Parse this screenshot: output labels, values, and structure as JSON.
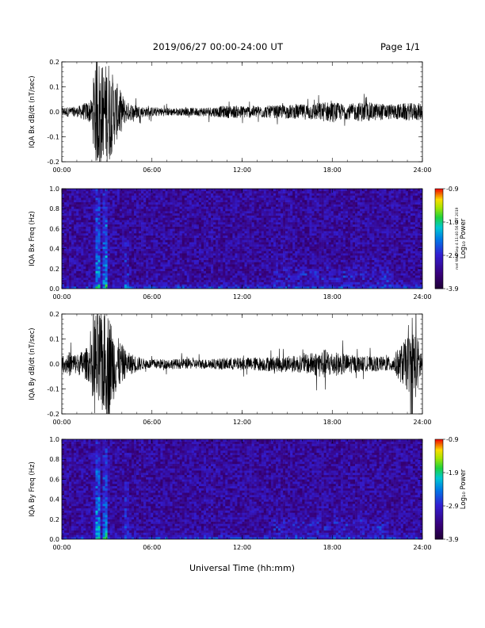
{
  "header": {
    "title": "2019/06/27  00:00-24:00 UT",
    "page": "Page 1/1"
  },
  "footer": {
    "xlabel": "Universal Time (hh:mm)"
  },
  "side_note": "mel Wed Sep 4 11:40:56 CST 2019",
  "chart_data": [
    {
      "type": "line",
      "ylabel": "IQA Bx dB/dt (nT/sec)",
      "x_ticks": [
        "00:00",
        "06:00",
        "12:00",
        "18:00",
        "24:00"
      ],
      "xlim_hours": [
        0,
        24
      ],
      "ylim": [
        -0.2,
        0.2
      ],
      "y_ticks": [
        "0.2",
        "0.1",
        "0.0",
        "-0.1",
        "-0.2"
      ],
      "y_tick_values": [
        0.2,
        0.1,
        0.0,
        -0.1,
        -0.2
      ],
      "envelope": {
        "x": [
          0,
          1,
          2,
          2.2,
          2.5,
          2.8,
          3.1,
          3.4,
          3.8,
          4.3,
          5.5,
          8,
          10,
          11,
          12,
          14,
          16,
          17.5,
          18,
          19,
          20,
          22,
          23,
          24
        ],
        "amp": [
          0.02,
          0.02,
          0.05,
          0.22,
          0.22,
          0.18,
          0.22,
          0.15,
          0.1,
          0.04,
          0.02,
          0.015,
          0.02,
          0.025,
          0.025,
          0.025,
          0.03,
          0.04,
          0.04,
          0.03,
          0.04,
          0.03,
          0.035,
          0.035
        ]
      }
    },
    {
      "type": "heatmap",
      "ylabel": "IQA Bx Freq (Hz)",
      "x_ticks": [
        "00:00",
        "06:00",
        "12:00",
        "18:00",
        "24:00"
      ],
      "xlim_hours": [
        0,
        24
      ],
      "ylim": [
        0.0,
        1.0
      ],
      "y_ticks": [
        "1.0",
        "0.8",
        "0.6",
        "0.4",
        "0.2",
        "0.0"
      ],
      "y_tick_values": [
        1.0,
        0.8,
        0.6,
        0.4,
        0.2,
        0.0
      ],
      "colorbar": {
        "label": "Log₁₀ Power",
        "ticks": [
          "-0.9",
          "-1.9",
          "-2.9",
          "-3.9"
        ],
        "range": [
          -3.9,
          -0.9
        ]
      },
      "features": [
        {
          "t": 2.4,
          "width": 0.25,
          "fmax": 1.0,
          "level": 0.55
        },
        {
          "t": 2.9,
          "width": 0.2,
          "fmax": 1.0,
          "level": 0.6
        },
        {
          "t": 4.3,
          "width": 0.15,
          "fmax": 0.5,
          "level": 0.35
        }
      ]
    },
    {
      "type": "line",
      "ylabel": "IQA By dB/dt (nT/sec)",
      "x_ticks": [
        "00:00",
        "06:00",
        "12:00",
        "18:00",
        "24:00"
      ],
      "xlim_hours": [
        0,
        24
      ],
      "ylim": [
        -0.2,
        0.2
      ],
      "y_ticks": [
        "0.2",
        "0.1",
        "0.0",
        "-0.1",
        "-0.2"
      ],
      "y_tick_values": [
        0.2,
        0.1,
        0.0,
        -0.1,
        -0.2
      ],
      "envelope": {
        "x": [
          0,
          0.5,
          1,
          1.5,
          2,
          2.2,
          2.5,
          2.8,
          3.1,
          3.4,
          3.8,
          4.3,
          5.5,
          8,
          10,
          11,
          12,
          14,
          16,
          17.5,
          18,
          19,
          20,
          22,
          23.5,
          24
        ],
        "amp": [
          0.03,
          0.05,
          0.04,
          0.06,
          0.08,
          0.22,
          0.22,
          0.2,
          0.22,
          0.15,
          0.1,
          0.05,
          0.02,
          0.02,
          0.02,
          0.025,
          0.025,
          0.03,
          0.035,
          0.06,
          0.05,
          0.04,
          0.03,
          0.03,
          0.15,
          0.04
        ]
      }
    },
    {
      "type": "heatmap",
      "ylabel": "IQA By Freq (Hz)",
      "x_ticks": [
        "00:00",
        "06:00",
        "12:00",
        "18:00",
        "24:00"
      ],
      "xlim_hours": [
        0,
        24
      ],
      "ylim": [
        0.0,
        1.0
      ],
      "y_ticks": [
        "1.0",
        "0.8",
        "0.6",
        "0.4",
        "0.2",
        "0.0"
      ],
      "y_tick_values": [
        1.0,
        0.8,
        0.6,
        0.4,
        0.2,
        0.0
      ],
      "colorbar": {
        "label": "Log₁₀ Power",
        "ticks": [
          "-0.9",
          "-1.9",
          "-2.9",
          "-3.9"
        ],
        "range": [
          -3.9,
          -0.9
        ]
      },
      "features": [
        {
          "t": 2.4,
          "width": 0.25,
          "fmax": 1.0,
          "level": 0.6
        },
        {
          "t": 2.9,
          "width": 0.2,
          "fmax": 1.0,
          "level": 0.6
        },
        {
          "t": 4.3,
          "width": 0.15,
          "fmax": 0.6,
          "level": 0.35
        }
      ]
    }
  ]
}
